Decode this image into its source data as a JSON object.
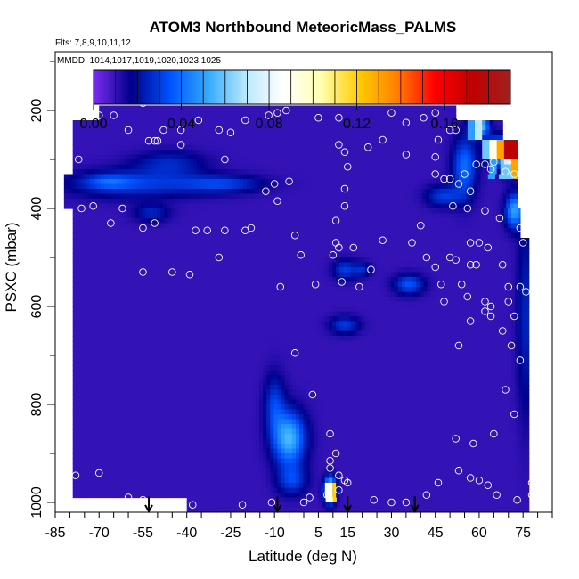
{
  "chart_data": {
    "type": "heatmap",
    "title": "ATOM3 Northbound MeteoricMass_PALMS",
    "flights_label": "Flts: 7,8,9,10,11,12",
    "mmdd_label": "MMDD: 1014,1017,1019,1020,1023,1025",
    "xlabel": "Latitude (deg N)",
    "ylabel": "PSXC (mbar)",
    "xlim": [
      -85,
      85
    ],
    "ylim": [
      1020,
      80
    ],
    "x_ticks": [
      -85,
      -70,
      -55,
      -40,
      -25,
      -10,
      5,
      15,
      30,
      45,
      60,
      75
    ],
    "y_ticks": [
      200,
      400,
      600,
      800,
      1000
    ],
    "colorbar": {
      "range": [
        0,
        0.19
      ],
      "ticks": [
        0.0,
        0.04,
        0.08,
        0.12,
        0.16
      ],
      "tick_labels": [
        "0.00",
        "0.04",
        "0.08",
        "0.12",
        "0.16"
      ],
      "colors": [
        "#7b2cf0",
        "#00008c",
        "#0050ff",
        "#30a8ff",
        "#b8e8ff",
        "#ffffff",
        "#ffffb0",
        "#ffcc00",
        "#ff8000",
        "#ff0000",
        "#c00000",
        "#a02020"
      ]
    },
    "background_value": 0.01,
    "coverage_bands": [
      {
        "p_top": 190,
        "p_bot": 220,
        "lat_min": -70,
        "lat_max": 52
      },
      {
        "p_top": 220,
        "p_bot": 260,
        "lat_min": -79,
        "lat_max": 68
      },
      {
        "p_top": 260,
        "p_bot": 330,
        "lat_min": -79,
        "lat_max": 73
      },
      {
        "p_top": 330,
        "p_bot": 400,
        "lat_min": -82,
        "lat_max": 73
      },
      {
        "p_top": 400,
        "p_bot": 460,
        "lat_min": -79,
        "lat_max": 74
      },
      {
        "p_top": 460,
        "p_bot": 990,
        "lat_min": -79,
        "lat_max": 77
      },
      {
        "p_top": 990,
        "p_bot": 1020,
        "lat_min": -40,
        "lat_max": 77
      }
    ],
    "features": [
      {
        "lat": -58,
        "p": 350,
        "dlat": 22,
        "dp": 28,
        "v": 0.02
      },
      {
        "lat": -46,
        "p": 308,
        "dlat": 12,
        "dp": 25,
        "v": 0.015
      },
      {
        "lat": -52,
        "p": 410,
        "dlat": 6,
        "dp": 18,
        "v": 0.015
      },
      {
        "lat": -28,
        "p": 350,
        "dlat": 14,
        "dp": 18,
        "v": 0.02
      },
      {
        "lat": -67,
        "p": 345,
        "dlat": 8,
        "dp": 15,
        "v": 0.015
      },
      {
        "lat": -10,
        "p": 800,
        "dlat": 3.5,
        "dp": 60,
        "v": 0.02
      },
      {
        "lat": -5,
        "p": 870,
        "dlat": 5.5,
        "dp": 55,
        "v": 0.045
      },
      {
        "lat": -4,
        "p": 955,
        "dlat": 5,
        "dp": 30,
        "v": 0.02
      },
      {
        "lat": 14,
        "p": 525,
        "dlat": 4,
        "dp": 20,
        "v": 0.02
      },
      {
        "lat": 20,
        "p": 525,
        "dlat": 3,
        "dp": 15,
        "v": 0.015
      },
      {
        "lat": 14,
        "p": 638,
        "dlat": 5,
        "dp": 18,
        "v": 0.02
      },
      {
        "lat": 36,
        "p": 555,
        "dlat": 5,
        "dp": 20,
        "v": 0.025
      },
      {
        "lat": 48,
        "p": 375,
        "dlat": 6,
        "dp": 22,
        "v": 0.02
      },
      {
        "lat": 55,
        "p": 315,
        "dlat": 4,
        "dp": 60,
        "v": 0.03
      },
      {
        "lat": 60,
        "p": 232,
        "dlat": 3,
        "dp": 20,
        "v": 0.06
      },
      {
        "lat": 65,
        "p": 280,
        "dlat": 3,
        "dp": 25,
        "v": 0.04
      },
      {
        "lat": 70,
        "p": 290,
        "dlat": 3,
        "dp": 30,
        "v": 0.09
      },
      {
        "lat": 72,
        "p": 405,
        "dlat": 3,
        "dp": 35,
        "v": 0.04
      },
      {
        "lat": 76,
        "p": 620,
        "dlat": 3,
        "dp": 200,
        "v": 0.015
      },
      {
        "lat": 9,
        "p": 975,
        "dlat": 2,
        "dp": 25,
        "v": 0.07
      }
    ],
    "hot_cells": [
      {
        "lat_min": 68,
        "lat_max": 73,
        "p_top": 260,
        "p_bot": 305,
        "v": 0.175
      },
      {
        "lat_min": 66,
        "lat_max": 68,
        "p_top": 260,
        "p_bot": 305,
        "v": 0.13
      },
      {
        "lat_min": 63,
        "lat_max": 66,
        "p_top": 260,
        "p_bot": 305,
        "v": 0.09
      },
      {
        "lat_min": 60.5,
        "lat_max": 63,
        "p_top": 260,
        "p_bot": 305,
        "v": 0.06
      },
      {
        "lat_min": 71.5,
        "lat_max": 73,
        "p_top": 305,
        "p_bot": 340,
        "v": 0.13
      },
      {
        "lat_min": 67,
        "lat_max": 71.5,
        "p_top": 305,
        "p_bot": 340,
        "v": 0.06
      },
      {
        "lat_min": 63.5,
        "lat_max": 66,
        "p_top": 305,
        "p_bot": 340,
        "v": 0.05
      },
      {
        "lat_min": 58,
        "lat_max": 61,
        "p_top": 220,
        "p_bot": 258,
        "v": 0.07
      },
      {
        "lat_min": 56,
        "lat_max": 58,
        "p_top": 220,
        "p_bot": 258,
        "v": 0.05
      },
      {
        "lat_min": 72.5,
        "lat_max": 74,
        "p_top": 330,
        "p_bot": 400,
        "v": 0.06
      },
      {
        "lat_min": 7,
        "lat_max": 9.5,
        "p_top": 960,
        "p_bot": 1000,
        "v": 0.09
      },
      {
        "lat_min": 9.5,
        "lat_max": 11,
        "p_top": 960,
        "p_bot": 1000,
        "v": 0.12
      }
    ],
    "obs_points": [
      [
        -70,
        210
      ],
      [
        -65,
        210
      ],
      [
        -82,
        240
      ],
      [
        -55,
        185
      ],
      [
        -77,
        300
      ],
      [
        -83,
        325
      ],
      [
        -60,
        240
      ],
      [
        -48,
        240
      ],
      [
        -42,
        240
      ],
      [
        -36,
        220
      ],
      [
        -29,
        240
      ],
      [
        -25,
        245
      ],
      [
        -20,
        220
      ],
      [
        -12,
        210
      ],
      [
        -9,
        205
      ],
      [
        -6,
        200
      ],
      [
        5,
        215
      ],
      [
        12,
        215
      ],
      [
        30,
        205
      ],
      [
        45,
        205
      ],
      [
        50,
        240
      ],
      [
        52,
        240
      ],
      [
        -37,
        445
      ],
      [
        -39,
        535
      ],
      [
        -45,
        530
      ],
      [
        -33,
        445
      ],
      [
        -27,
        445
      ],
      [
        -20,
        445
      ],
      [
        -55,
        440
      ],
      [
        -53,
        262
      ],
      [
        -51,
        262
      ],
      [
        -50,
        262
      ],
      [
        -42,
        270
      ],
      [
        -62,
        400
      ],
      [
        -72,
        395
      ],
      [
        -76,
        400
      ],
      [
        -66,
        430
      ],
      [
        -55,
        530
      ],
      [
        -51,
        430
      ],
      [
        -29,
        500
      ],
      [
        -18,
        440
      ],
      [
        -5,
        345
      ],
      [
        -8,
        560
      ],
      [
        -3,
        455
      ],
      [
        -1,
        495
      ],
      [
        11,
        425
      ],
      [
        14,
        395
      ],
      [
        14,
        285
      ],
      [
        12,
        270
      ],
      [
        22,
        275
      ],
      [
        27,
        260
      ],
      [
        35,
        290
      ],
      [
        35,
        225
      ],
      [
        41,
        215
      ],
      [
        46,
        260
      ],
      [
        45,
        295
      ],
      [
        45,
        330
      ],
      [
        48,
        340
      ],
      [
        50,
        340
      ],
      [
        51,
        395
      ],
      [
        56,
        400
      ],
      [
        55,
        330
      ],
      [
        59,
        310
      ],
      [
        62,
        310
      ],
      [
        64,
        320
      ],
      [
        65,
        305
      ],
      [
        69,
        325
      ],
      [
        72,
        330
      ],
      [
        75,
        330
      ],
      [
        78,
        415
      ],
      [
        74,
        440
      ],
      [
        75,
        470
      ],
      [
        67,
        420
      ],
      [
        62,
        405
      ],
      [
        57,
        365
      ],
      [
        53,
        350
      ],
      [
        50,
        500
      ],
      [
        52,
        505
      ],
      [
        57,
        515
      ],
      [
        59,
        515
      ],
      [
        54,
        555
      ],
      [
        56,
        580
      ],
      [
        62,
        590
      ],
      [
        64,
        600
      ],
      [
        62,
        610
      ],
      [
        70,
        590
      ],
      [
        72,
        620
      ],
      [
        76,
        570
      ],
      [
        48,
        590
      ],
      [
        45,
        520
      ],
      [
        10,
        495
      ],
      [
        11,
        470
      ],
      [
        12,
        480
      ],
      [
        4,
        555
      ],
      [
        13,
        550
      ],
      [
        17,
        480
      ],
      [
        19,
        560
      ],
      [
        23,
        525
      ],
      [
        27,
        465
      ],
      [
        40,
        435
      ],
      [
        37,
        470
      ],
      [
        42,
        500
      ],
      [
        47,
        555
      ],
      [
        57,
        470
      ],
      [
        60,
        470
      ],
      [
        63,
        480
      ],
      [
        68,
        515
      ],
      [
        70,
        560
      ],
      [
        74,
        560
      ],
      [
        14,
        360
      ],
      [
        15,
        315
      ],
      [
        -10,
        350
      ],
      [
        -9,
        385
      ],
      [
        -13,
        365
      ],
      [
        -27,
        300
      ],
      [
        -70,
        940
      ],
      [
        -82,
        950
      ],
      [
        -78,
        945
      ],
      [
        -60,
        990
      ],
      [
        -55,
        995
      ],
      [
        -38,
        1005
      ],
      [
        -21,
        1005
      ],
      [
        -11,
        1000
      ],
      [
        0,
        1000
      ],
      [
        2,
        990
      ],
      [
        8,
        985
      ],
      [
        12,
        975
      ],
      [
        15,
        960
      ],
      [
        12,
        945
      ],
      [
        9,
        930
      ],
      [
        24,
        995
      ],
      [
        30,
        1000
      ],
      [
        35,
        1000
      ],
      [
        42,
        985
      ],
      [
        46,
        960
      ],
      [
        53,
        935
      ],
      [
        57,
        950
      ],
      [
        60,
        955
      ],
      [
        63,
        965
      ],
      [
        66,
        985
      ],
      [
        73,
        995
      ],
      [
        78,
        960
      ],
      [
        78,
        985
      ],
      [
        65,
        860
      ],
      [
        58,
        880
      ],
      [
        52,
        870
      ],
      [
        72,
        820
      ],
      [
        69,
        770
      ],
      [
        74,
        710
      ],
      [
        71,
        680
      ],
      [
        68,
        650
      ],
      [
        53,
        680
      ],
      [
        57,
        630
      ],
      [
        64,
        620
      ],
      [
        9,
        860
      ],
      [
        9,
        915
      ],
      [
        14,
        955
      ],
      [
        -3,
        695
      ],
      [
        3,
        780
      ],
      [
        11,
        900
      ]
    ],
    "arrows_lat": [
      -53,
      -9,
      15,
      38
    ]
  }
}
